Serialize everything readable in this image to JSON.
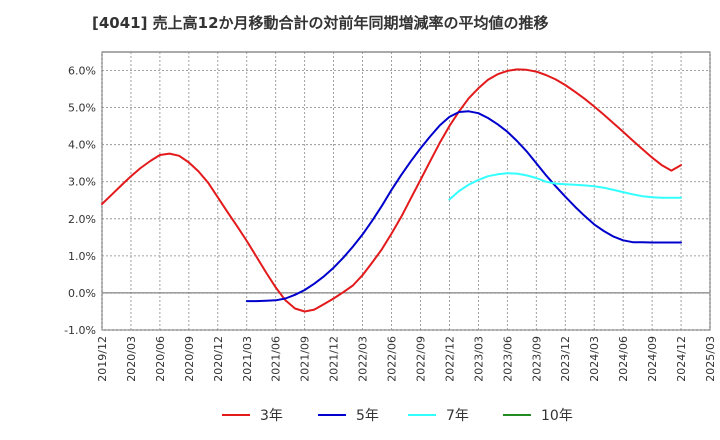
{
  "chart_data": {
    "type": "line",
    "title": "[4041]  売上高12か月移動合計の対前年同期増減率の平均値の推移",
    "xlabel": "",
    "ylabel": "",
    "ylim": [
      -1.0,
      6.5
    ],
    "y_ticks": [
      -1.0,
      0.0,
      1.0,
      2.0,
      3.0,
      4.0,
      5.0,
      6.0
    ],
    "y_tick_labels": [
      "-1.0%",
      "0.0%",
      "1.0%",
      "2.0%",
      "3.0%",
      "4.0%",
      "5.0%",
      "6.0%"
    ],
    "x_ticks": [
      "2019/12",
      "2020/03",
      "2020/06",
      "2020/09",
      "2020/12",
      "2021/03",
      "2021/06",
      "2021/09",
      "2021/12",
      "2022/03",
      "2022/06",
      "2022/09",
      "2022/12",
      "2023/03",
      "2023/06",
      "2023/09",
      "2023/12",
      "2024/03",
      "2024/06",
      "2024/09",
      "2024/12",
      "2025/03"
    ],
    "grid": true,
    "legend_position": "bottom",
    "series": [
      {
        "name": "3年",
        "color": "#e31a1c",
        "x": [
          "2019/12",
          "2020/01",
          "2020/02",
          "2020/03",
          "2020/04",
          "2020/05",
          "2020/06",
          "2020/07",
          "2020/08",
          "2020/09",
          "2020/10",
          "2020/11",
          "2020/12",
          "2021/01",
          "2021/02",
          "2021/03",
          "2021/04",
          "2021/05",
          "2021/06",
          "2021/07",
          "2021/08",
          "2021/09",
          "2021/10",
          "2021/11",
          "2021/12",
          "2022/01",
          "2022/02",
          "2022/03",
          "2022/04",
          "2022/05",
          "2022/06",
          "2022/07",
          "2022/08",
          "2022/09",
          "2022/10",
          "2022/11",
          "2022/12",
          "2023/01",
          "2023/02",
          "2023/03",
          "2023/04",
          "2023/05",
          "2023/06",
          "2023/07",
          "2023/08",
          "2023/09",
          "2023/10",
          "2023/11",
          "2023/12",
          "2024/01",
          "2024/02",
          "2024/03",
          "2024/04",
          "2024/05",
          "2024/06",
          "2024/07",
          "2024/08",
          "2024/09",
          "2024/10",
          "2024/11",
          "2024/12"
        ],
        "values": [
          2.4,
          2.65,
          2.9,
          3.15,
          3.37,
          3.56,
          3.72,
          3.76,
          3.7,
          3.52,
          3.28,
          2.97,
          2.58,
          2.18,
          1.8,
          1.4,
          0.98,
          0.55,
          0.15,
          -0.2,
          -0.42,
          -0.5,
          -0.45,
          -0.3,
          -0.15,
          0.02,
          0.2,
          0.48,
          0.82,
          1.18,
          1.6,
          2.05,
          2.55,
          3.05,
          3.55,
          4.05,
          4.5,
          4.9,
          5.25,
          5.52,
          5.75,
          5.9,
          5.99,
          6.03,
          6.02,
          5.97,
          5.88,
          5.76,
          5.61,
          5.43,
          5.24,
          5.03,
          4.81,
          4.58,
          4.35,
          4.11,
          3.88,
          3.65,
          3.45,
          3.3,
          3.45
        ]
      },
      {
        "name": "5年",
        "color": "#0000cc",
        "x": [
          "2021/03",
          "2021/04",
          "2021/05",
          "2021/06",
          "2021/07",
          "2021/08",
          "2021/09",
          "2021/10",
          "2021/11",
          "2021/12",
          "2022/01",
          "2022/02",
          "2022/03",
          "2022/04",
          "2022/05",
          "2022/06",
          "2022/07",
          "2022/08",
          "2022/09",
          "2022/10",
          "2022/11",
          "2022/12",
          "2023/01",
          "2023/02",
          "2023/03",
          "2023/04",
          "2023/05",
          "2023/06",
          "2023/07",
          "2023/08",
          "2023/09",
          "2023/10",
          "2023/11",
          "2023/12",
          "2024/01",
          "2024/02",
          "2024/03",
          "2024/04",
          "2024/05",
          "2024/06",
          "2024/07",
          "2024/08",
          "2024/09",
          "2024/10",
          "2024/11",
          "2024/12"
        ],
        "values": [
          -0.22,
          -0.22,
          -0.21,
          -0.2,
          -0.15,
          -0.05,
          0.08,
          0.25,
          0.45,
          0.68,
          0.95,
          1.25,
          1.58,
          1.95,
          2.35,
          2.78,
          3.18,
          3.55,
          3.9,
          4.22,
          4.52,
          4.75,
          4.88,
          4.9,
          4.85,
          4.72,
          4.55,
          4.35,
          4.1,
          3.82,
          3.5,
          3.18,
          2.88,
          2.6,
          2.33,
          2.08,
          1.85,
          1.67,
          1.52,
          1.42,
          1.37,
          1.37,
          1.36,
          1.36,
          1.36,
          1.36
        ]
      },
      {
        "name": "7年",
        "color": "#33ffff",
        "x": [
          "2022/12",
          "2023/01",
          "2023/02",
          "2023/03",
          "2023/04",
          "2023/05",
          "2023/06",
          "2023/07",
          "2023/08",
          "2023/09",
          "2023/10",
          "2023/11",
          "2023/12",
          "2024/01",
          "2024/02",
          "2024/03",
          "2024/04",
          "2024/05",
          "2024/06",
          "2024/07",
          "2024/08",
          "2024/09",
          "2024/10",
          "2024/11",
          "2024/12"
        ],
        "values": [
          2.52,
          2.75,
          2.92,
          3.05,
          3.15,
          3.2,
          3.23,
          3.22,
          3.17,
          3.1,
          3.0,
          2.95,
          2.93,
          2.92,
          2.9,
          2.88,
          2.84,
          2.78,
          2.72,
          2.66,
          2.61,
          2.58,
          2.57,
          2.57,
          2.57
        ]
      },
      {
        "name": "10年",
        "color": "#228b22",
        "x": [],
        "values": []
      }
    ]
  }
}
